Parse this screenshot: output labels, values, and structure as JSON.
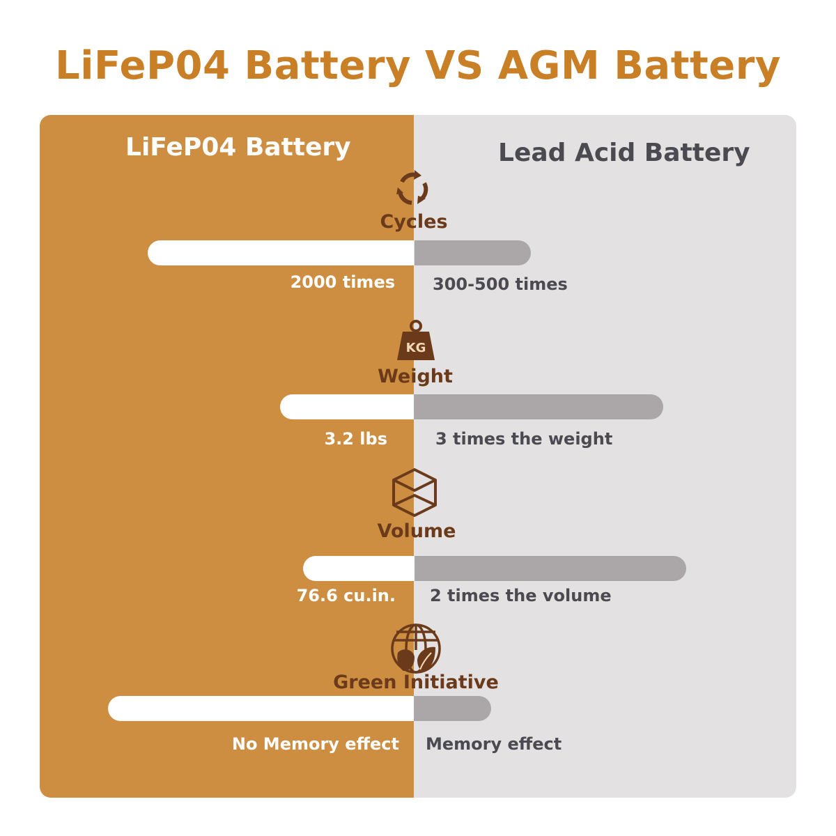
{
  "title": "LiFeP04 Battery VS AGM Battery",
  "columns": {
    "left": "LiFeP04 Battery",
    "right": "Lead Acid Battery"
  },
  "colors": {
    "title": "#c97f26",
    "left_panel": "#cd8e42",
    "right_panel": "#e4e1e2",
    "icon": "#6b3a1a",
    "left_bar": "#ffffff",
    "right_bar": "#aba7a8"
  },
  "rows": [
    {
      "icon": "cycle-arrows-icon",
      "label": "Cycles",
      "left_value": "2000 times",
      "right_value": "300-500 times"
    },
    {
      "icon": "kg-weight-icon",
      "label": "Weight",
      "left_value": "3.2 lbs",
      "right_value": "3 times the weight"
    },
    {
      "icon": "cube-icon",
      "label": "Volume",
      "left_value": "76.6 cu.in.",
      "right_value": "2 times the volume"
    },
    {
      "icon": "globe-leaf-icon",
      "label": "Green Initiative",
      "left_value": "No Memory effect",
      "right_value": "Memory effect"
    }
  ]
}
